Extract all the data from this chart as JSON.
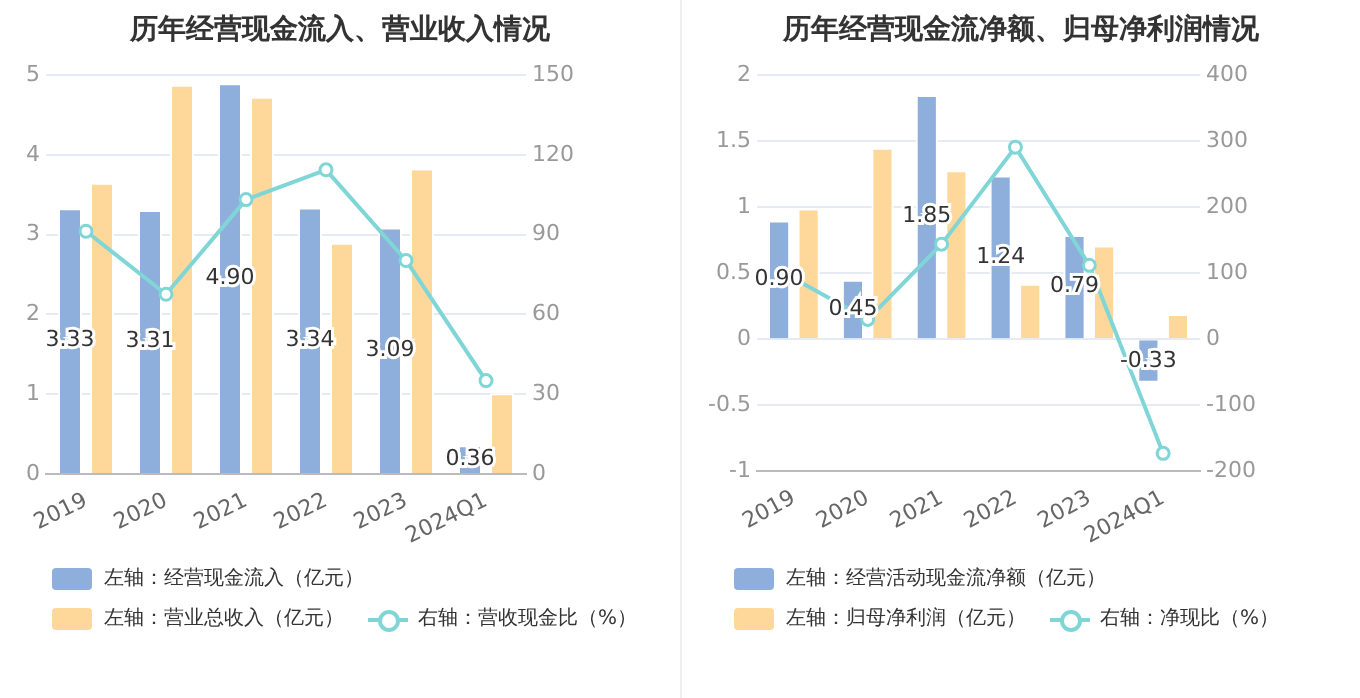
{
  "chart_data": [
    {
      "type": "bar",
      "title": "历年经营现金流入、营业收入情况",
      "categories": [
        "2019",
        "2020",
        "2021",
        "2022",
        "2023",
        "2024Q1"
      ],
      "ylim": [
        0,
        5
      ],
      "yticks": [
        0,
        1,
        2,
        3,
        4,
        5
      ],
      "y2lim": [
        0,
        150
      ],
      "y2ticks": [
        0,
        30,
        60,
        90,
        120,
        150
      ],
      "grid": "y",
      "legend": "bottom",
      "marker": "circle",
      "series": [
        {
          "name": "左轴：经营现金流入（亿元）",
          "color": "#8eaedc",
          "values": [
            3.33,
            3.31,
            4.9,
            3.34,
            3.09,
            0.36
          ],
          "value_labels": [
            "3.33",
            "3.31",
            "4.90",
            "3.34",
            "3.09",
            "0.36"
          ]
        },
        {
          "name": "左轴：营业总收入（亿元）",
          "color": "#fdd89a",
          "values": [
            3.65,
            4.88,
            4.73,
            2.9,
            3.83,
            1.01
          ]
        },
        {
          "name": "右轴：营收现金比（%）",
          "type": "line",
          "axis": "y2",
          "color": "#80d6d6",
          "values": [
            91.3,
            67.6,
            103.2,
            114.4,
            80.3,
            35.1
          ]
        }
      ]
    },
    {
      "type": "bar",
      "title": "历年经营现金流净额、归母净利润情况",
      "categories": [
        "2019",
        "2020",
        "2021",
        "2022",
        "2023",
        "2024Q1"
      ],
      "ylim": [
        -1,
        2
      ],
      "yticks": [
        -1,
        -0.5,
        0,
        0.5,
        1,
        1.5,
        2
      ],
      "y2lim": [
        -200,
        400
      ],
      "y2ticks": [
        -200,
        -100,
        0,
        100,
        200,
        300,
        400
      ],
      "grid": "y",
      "legend": "bottom",
      "marker": "circle",
      "series": [
        {
          "name": "左轴：经营活动现金流净额（亿元）",
          "color": "#8eaedc",
          "values": [
            0.9,
            0.45,
            1.85,
            1.24,
            0.79,
            -0.33
          ],
          "value_labels": [
            "0.90",
            "0.45",
            "1.85",
            "1.24",
            "0.79",
            "-0.33"
          ]
        },
        {
          "name": "左轴：归母净利润（亿元）",
          "color": "#fdd89a",
          "values": [
            0.99,
            1.45,
            1.28,
            0.42,
            0.71,
            0.19
          ]
        },
        {
          "name": "右轴：净现比（%）",
          "type": "line",
          "axis": "y2",
          "color": "#80d6d6",
          "values": [
            92,
            30,
            144,
            291,
            112,
            -173
          ]
        }
      ]
    }
  ]
}
